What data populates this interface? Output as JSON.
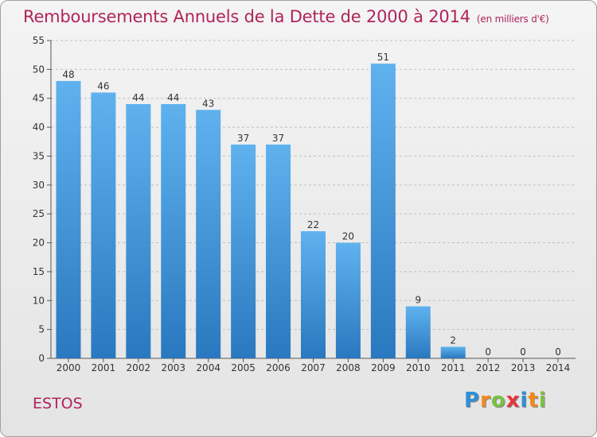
{
  "header": {
    "title": "Remboursements Annuels de la Dette de 2000 à 2014",
    "unit": "(en milliers d'€)"
  },
  "commune": "ESTOS",
  "logo": {
    "letters": [
      {
        "ch": "P",
        "color": "#2e8fd6"
      },
      {
        "ch": "r",
        "color": "#f08a1c"
      },
      {
        "ch": "o",
        "color": "#7ac142"
      },
      {
        "ch": "x",
        "color": "#e8343a"
      },
      {
        "ch": "i",
        "color": "#2e8fd6"
      },
      {
        "ch": "t",
        "color": "#f08a1c"
      },
      {
        "ch": "i",
        "color": "#7ac142"
      }
    ]
  },
  "colors": {
    "bar_top": "#5fb2ee",
    "bar_bottom": "#2a78bf",
    "title": "#b0245a",
    "grid": "#bfbfbf"
  },
  "chart_data": {
    "type": "bar",
    "title": "Remboursements Annuels de la Dette de 2000 à 2014",
    "subtitle": "(en milliers d'€)",
    "xlabel": "",
    "ylabel": "",
    "categories": [
      "2000",
      "2001",
      "2002",
      "2003",
      "2004",
      "2005",
      "2006",
      "2007",
      "2008",
      "2009",
      "2010",
      "2011",
      "2012",
      "2013",
      "2014"
    ],
    "values": [
      48,
      46,
      44,
      44,
      43,
      37,
      37,
      22,
      20,
      51,
      9,
      2,
      0,
      0,
      0
    ],
    "ylim": [
      0,
      55
    ],
    "yticks": [
      0,
      5,
      10,
      15,
      20,
      25,
      30,
      35,
      40,
      45,
      50,
      55
    ],
    "grid": true,
    "data_labels": true
  }
}
